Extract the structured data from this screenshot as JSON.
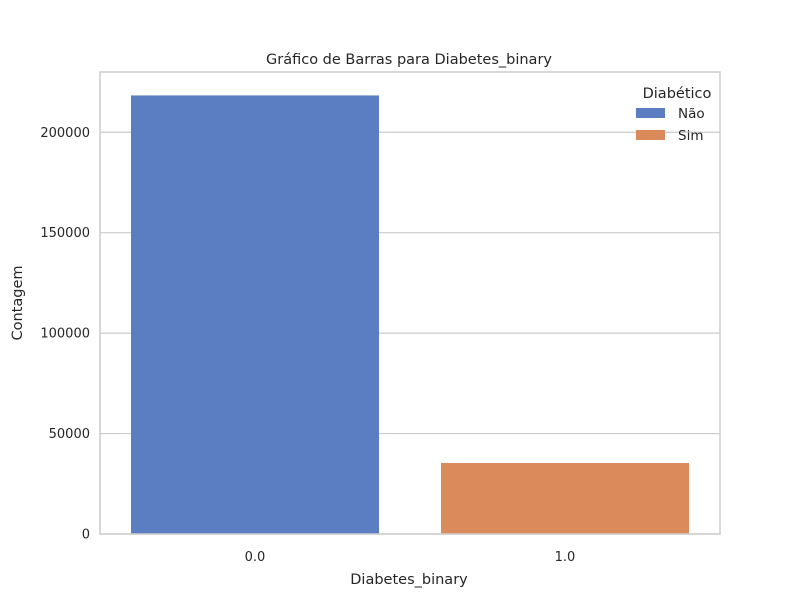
{
  "chart_data": {
    "type": "bar",
    "title": "Gráfico de Barras para Diabetes_binary",
    "xlabel": "Diabetes_binary",
    "ylabel": "Contagem",
    "categories": [
      "0.0",
      "1.0"
    ],
    "values": [
      218334,
      35346
    ],
    "colors": [
      "#5b7dc2",
      "#db8a5b"
    ],
    "ylim": [
      0,
      230000
    ],
    "yticks": [
      0,
      50000,
      100000,
      150000,
      200000
    ],
    "grid": true,
    "legend": {
      "title": "Diabético",
      "placement": "top-right",
      "entries": [
        {
          "label": "Não",
          "color": "#5b7dc2"
        },
        {
          "label": "Sim",
          "color": "#db8a5b"
        }
      ]
    }
  }
}
